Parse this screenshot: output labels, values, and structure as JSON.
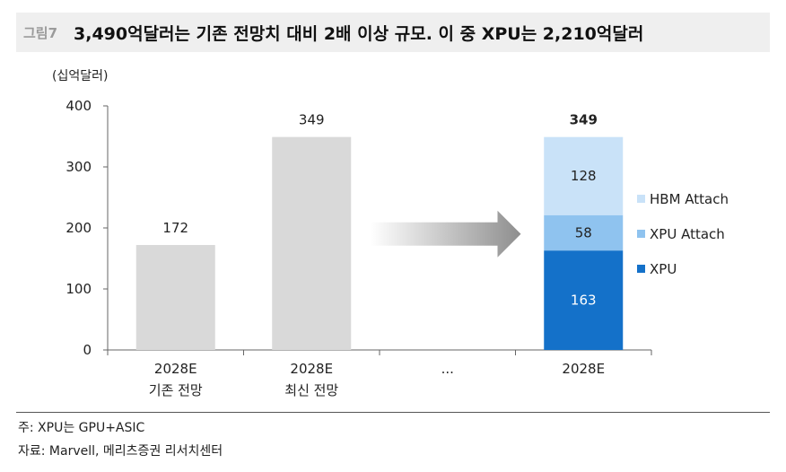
{
  "header": {
    "figure_label": "그림7",
    "title": "3,490억달러는 기존 전망치 대비 2배 이상 규모. 이 중 XPU는 2,210억달러"
  },
  "chart_data": {
    "type": "bar",
    "unit_label": "(십억달러)",
    "ylim": [
      0,
      400
    ],
    "yticks": [
      0,
      100,
      200,
      300,
      400
    ],
    "categories": [
      {
        "line1": "2028E",
        "line2": "기존 전망"
      },
      {
        "line1": "2028E",
        "line2": "최신 전망"
      },
      {
        "line1": "...",
        "line2": ""
      },
      {
        "line1": "2028E",
        "line2": ""
      }
    ],
    "simple_bars": [
      {
        "category_index": 0,
        "value": 172,
        "label": "172"
      },
      {
        "category_index": 1,
        "value": 349,
        "label": "349"
      }
    ],
    "stacked_bar": {
      "category_index": 3,
      "total": 349,
      "total_label": "349",
      "segments": [
        {
          "name": "XPU",
          "value": 163,
          "label": "163",
          "color": "#1471c9",
          "label_color": "#ffffff"
        },
        {
          "name": "XPU Attach",
          "value": 58,
          "label": "58",
          "color": "#8fc3ef",
          "label_color": "#222222"
        },
        {
          "name": "HBM Attach",
          "value": 128,
          "label": "128",
          "color": "#c9e2f8",
          "label_color": "#222222"
        }
      ]
    },
    "legend": [
      {
        "name": "HBM Attach",
        "color": "#c9e2f8"
      },
      {
        "name": "XPU Attach",
        "color": "#8fc3ef"
      },
      {
        "name": "XPU",
        "color": "#1471c9"
      }
    ],
    "simple_bar_color": "#d9d9d9",
    "arrow_color": "#9a9a9a",
    "grid": false,
    "legend_position": "right"
  },
  "footer": {
    "note": "주: XPU는 GPU+ASIC",
    "source": "자료: Marvell, 메리츠증권 리서치센터"
  }
}
